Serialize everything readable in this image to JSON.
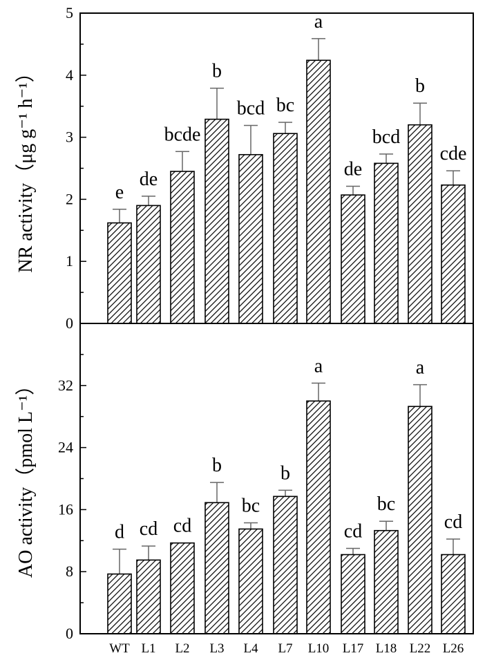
{
  "chart_data": [
    {
      "type": "bar",
      "panel": "top",
      "categories": [
        "WT",
        "L1",
        "L2",
        "L3",
        "L4",
        "L7",
        "L10",
        "L17",
        "L18",
        "L22",
        "L26"
      ],
      "values": [
        1.62,
        1.9,
        2.45,
        3.29,
        2.72,
        3.06,
        4.24,
        2.07,
        2.58,
        3.2,
        2.23
      ],
      "errors": [
        0.22,
        0.15,
        0.32,
        0.5,
        0.47,
        0.18,
        0.35,
        0.14,
        0.15,
        0.35,
        0.23
      ],
      "significance": [
        "e",
        "de",
        "bcde",
        "b",
        "bcd",
        "bc",
        "a",
        "de",
        "bcd",
        "b",
        "cde"
      ],
      "ylabel": "NR activity（μg g⁻¹ h⁻¹）",
      "ylim": [
        0,
        5
      ],
      "yticks": [
        0,
        1,
        2,
        3,
        4,
        5
      ],
      "ytick_labels": [
        "0",
        "1",
        "2",
        "3",
        "4",
        "5"
      ]
    },
    {
      "type": "bar",
      "panel": "bottom",
      "categories": [
        "WT",
        "L1",
        "L2",
        "L3",
        "L4",
        "L7",
        "L10",
        "L17",
        "L18",
        "L22",
        "L26"
      ],
      "values": [
        7.7,
        9.5,
        11.7,
        16.9,
        13.5,
        17.7,
        30.0,
        10.2,
        13.3,
        29.3,
        10.2
      ],
      "errors": [
        3.2,
        1.8,
        0.0,
        2.6,
        0.8,
        0.8,
        2.3,
        0.8,
        1.2,
        2.8,
        2.0
      ],
      "significance": [
        "d",
        "cd",
        "cd",
        "b",
        "bc",
        "b",
        "a",
        "cd",
        "bc",
        "a",
        "cd"
      ],
      "ylabel": "AO activity（pmol L⁻¹）",
      "ylim": [
        0,
        40
      ],
      "yticks": [
        0,
        8,
        16,
        24,
        32
      ],
      "ytick_labels": [
        "0",
        "8",
        "16",
        "24",
        "32"
      ]
    }
  ]
}
